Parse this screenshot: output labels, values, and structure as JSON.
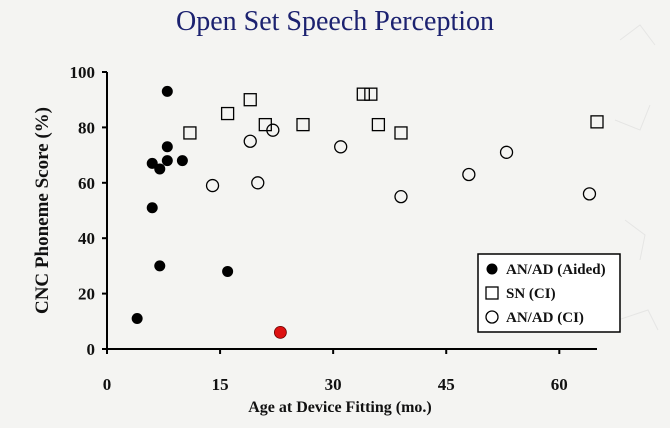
{
  "chart_data": {
    "type": "scatter",
    "title": "Open Set Speech Perception",
    "xlabel": "Age at Device Fitting (mo.)",
    "ylabel": "CNC Phoneme Score (%)",
    "xlim": [
      0,
      65
    ],
    "ylim": [
      0,
      100
    ],
    "x_ticks": [
      0,
      15,
      30,
      45,
      60
    ],
    "y_ticks": [
      0,
      20,
      40,
      60,
      80,
      100
    ],
    "grid": false,
    "legend_position": "bottom-right",
    "series": [
      {
        "name": "AN/AD (Aided)",
        "marker": "filled-circle",
        "color": "#000000",
        "points": [
          {
            "x": 8,
            "y": 93
          },
          {
            "x": 8,
            "y": 73
          },
          {
            "x": 6,
            "y": 67
          },
          {
            "x": 7,
            "y": 65
          },
          {
            "x": 8,
            "y": 68
          },
          {
            "x": 10,
            "y": 68
          },
          {
            "x": 6,
            "y": 51
          },
          {
            "x": 7,
            "y": 30
          },
          {
            "x": 16,
            "y": 28
          },
          {
            "x": 4,
            "y": 11
          }
        ]
      },
      {
        "name": "SN (CI)",
        "marker": "open-square",
        "color": "#000000",
        "points": [
          {
            "x": 11,
            "y": 78
          },
          {
            "x": 16,
            "y": 85
          },
          {
            "x": 19,
            "y": 90
          },
          {
            "x": 21,
            "y": 81
          },
          {
            "x": 26,
            "y": 81
          },
          {
            "x": 34,
            "y": 92
          },
          {
            "x": 35,
            "y": 92
          },
          {
            "x": 36,
            "y": 81
          },
          {
            "x": 39,
            "y": 78
          },
          {
            "x": 65,
            "y": 82
          }
        ]
      },
      {
        "name": "AN/AD (CI)",
        "marker": "open-circle",
        "color": "#000000",
        "points": [
          {
            "x": 14,
            "y": 59
          },
          {
            "x": 19,
            "y": 75
          },
          {
            "x": 20,
            "y": 60
          },
          {
            "x": 22,
            "y": 79
          },
          {
            "x": 31,
            "y": 73
          },
          {
            "x": 39,
            "y": 55
          },
          {
            "x": 48,
            "y": 63
          },
          {
            "x": 53,
            "y": 71
          },
          {
            "x": 64,
            "y": 56
          }
        ]
      }
    ],
    "highlight_point": {
      "x": 23,
      "y": 6,
      "color": "#dd1111"
    }
  }
}
